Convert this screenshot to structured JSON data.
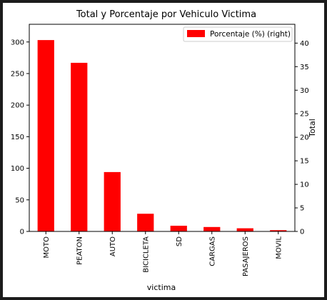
{
  "chart_data": {
    "type": "bar",
    "title": "Total y Porcentaje por Vehiculo Victima",
    "xlabel": "victima",
    "ylabel_left": "",
    "ylabel_right": "Total",
    "categories": [
      "MOTO",
      "PEATON",
      "AUTO",
      "BICICLETA",
      "SD",
      "CARGAS",
      "PASAJEROS",
      "MOVIL"
    ],
    "series": [
      {
        "name": "Porcentaje (%) (right)",
        "axis": "left",
        "values": [
          303,
          267,
          94,
          28,
          9,
          7,
          5,
          2
        ]
      }
    ],
    "ylim_left": [
      0,
      328
    ],
    "yticks_left": [
      "0",
      "50",
      "100",
      "150",
      "200",
      "250",
      "300"
    ],
    "ylim_right": [
      0,
      44
    ],
    "yticks_right": [
      "0",
      "5",
      "10",
      "15",
      "20",
      "25",
      "30",
      "35",
      "40"
    ],
    "bar_color": "#ff0000",
    "legend_position": "upper right",
    "grid": false
  }
}
